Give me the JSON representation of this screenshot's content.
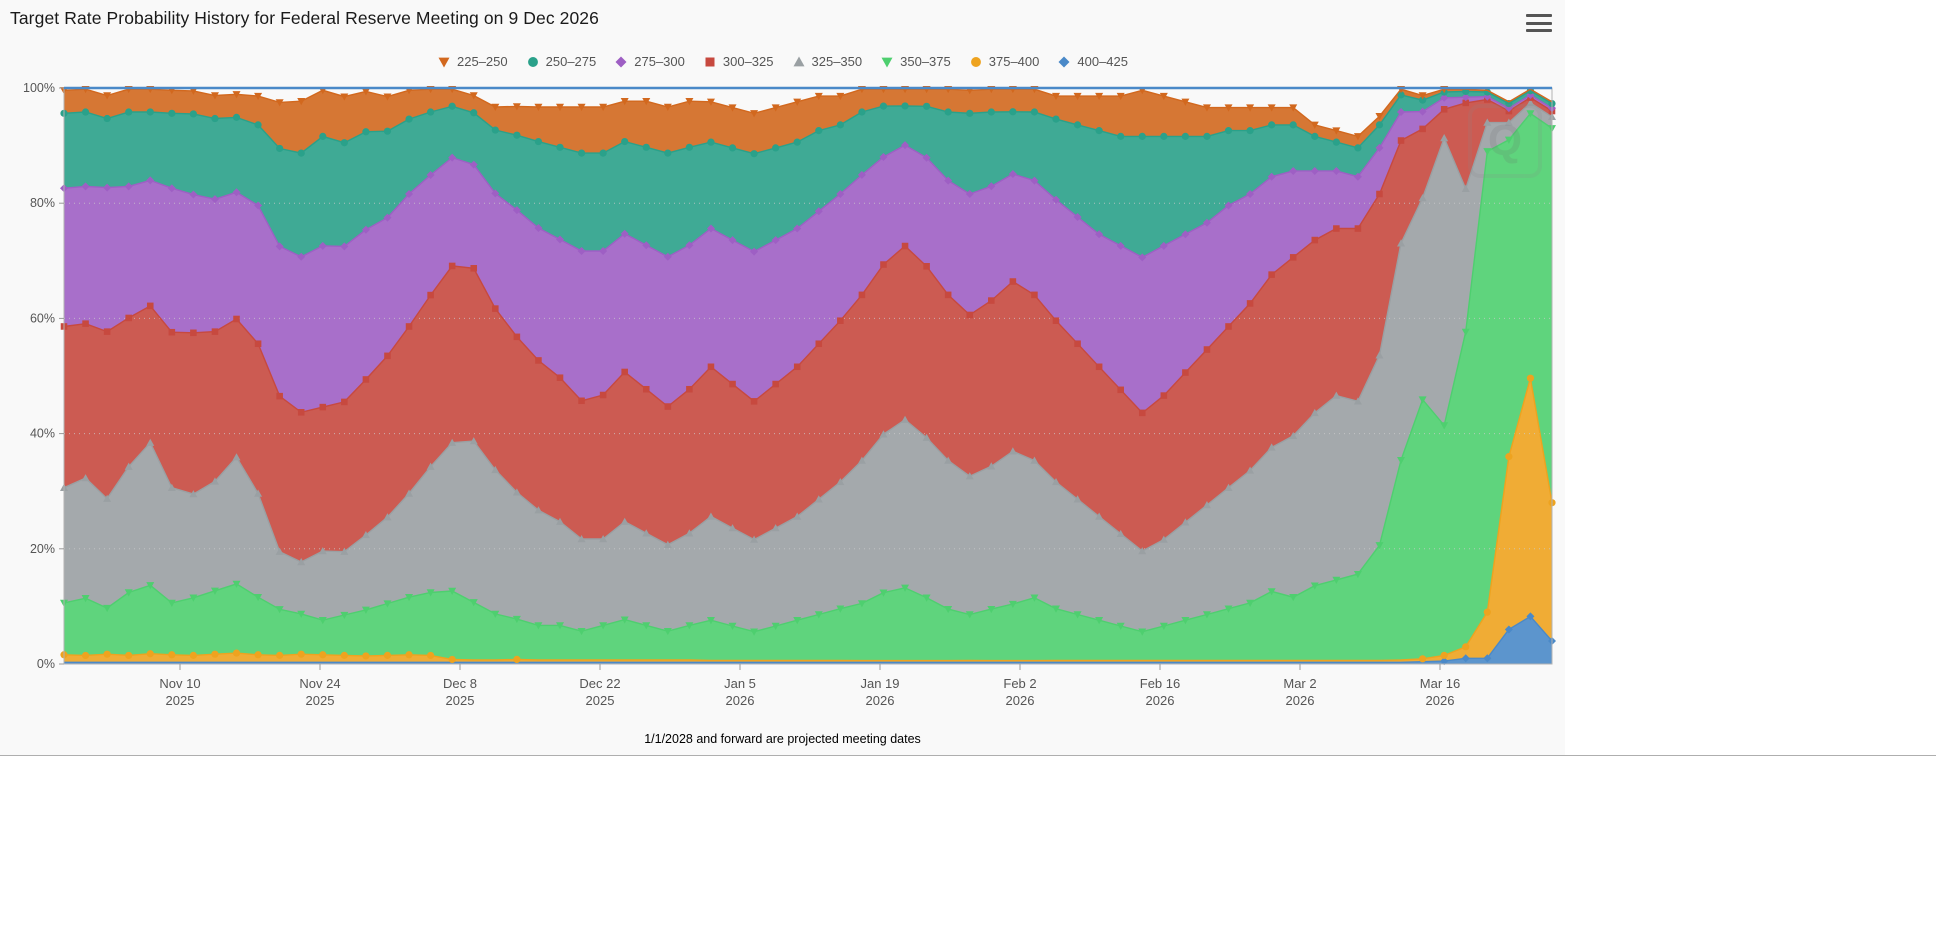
{
  "chart": {
    "title": "Target Rate Probability History for Federal Reserve Meeting on 9 Dec 2026",
    "footnote": "1/1/2028 and forward are projected meeting dates",
    "watermark_letter": "Q",
    "background": "#f9f9f9",
    "menu_icon": "hamburger-menu-icon"
  },
  "chart_data": {
    "type": "area",
    "stacked": true,
    "title": "Target Rate Probability History for Federal Reserve Meeting on 9 Dec 2026",
    "xlabel": "",
    "ylabel": "",
    "ylim": [
      0,
      100
    ],
    "grid": "horizontal-dotted",
    "legend_position": "top",
    "y_ticks": [
      "0%",
      "20%",
      "40%",
      "60%",
      "80%",
      "100%"
    ],
    "y_tick_values": [
      0,
      20,
      40,
      60,
      80,
      100
    ],
    "x_ticks": [
      {
        "label": "Nov 10",
        "year": "2025"
      },
      {
        "label": "Nov 24",
        "year": "2025"
      },
      {
        "label": "Dec 8",
        "year": "2025"
      },
      {
        "label": "Dec 22",
        "year": "2025"
      },
      {
        "label": "Jan 5",
        "year": "2026"
      },
      {
        "label": "Jan 19",
        "year": "2026"
      },
      {
        "label": "Feb 2",
        "year": "2026"
      },
      {
        "label": "Feb 16",
        "year": "2026"
      },
      {
        "label": "Mar 2",
        "year": "2026"
      },
      {
        "label": "Mar 16",
        "year": "2026"
      }
    ],
    "stack_order": [
      "400–425",
      "375–400",
      "350–375",
      "325–350",
      "300–325",
      "275–300",
      "250–275",
      "225–250"
    ],
    "series": [
      {
        "name": "225–250",
        "color": "#d2681e",
        "marker": "triangle-down",
        "values": [
          4,
          4,
          4,
          4,
          4,
          4,
          4,
          4,
          4,
          5,
          8,
          9,
          8,
          8,
          7,
          6,
          5,
          4,
          3,
          3,
          4,
          5,
          6,
          7,
          8,
          8,
          7,
          8,
          8,
          8,
          7,
          7,
          7,
          7,
          7,
          6,
          5,
          4,
          3,
          3,
          3,
          4,
          4,
          4,
          4,
          4,
          4,
          5,
          6,
          7,
          8,
          7,
          6,
          5,
          4,
          4,
          3,
          3,
          2,
          2,
          2,
          1.5,
          1,
          0.8,
          0.5,
          0.4,
          0.3,
          0.3,
          0.3,
          0.3
        ]
      },
      {
        "name": "250–275",
        "color": "#2aa18a",
        "marker": "circle",
        "values": [
          13,
          13,
          12,
          13,
          12,
          13,
          14,
          14,
          13,
          14,
          17,
          18,
          19,
          18,
          17,
          15,
          13,
          11,
          9,
          9,
          11,
          13,
          15,
          16,
          17,
          17,
          16,
          17,
          18,
          17,
          15,
          16,
          17,
          16,
          15,
          14,
          12,
          11,
          9,
          7,
          9,
          12,
          14,
          13,
          11,
          12,
          14,
          16,
          18,
          19,
          21,
          19,
          17,
          15,
          13,
          11,
          9,
          8,
          6,
          5,
          5,
          4,
          3,
          2,
          1,
          1,
          0.8,
          0.8,
          0.8,
          0.8
        ]
      },
      {
        "name": "275–300",
        "color": "#9e5fc4",
        "marker": "diamond",
        "values": [
          24,
          24,
          25,
          23,
          22,
          25,
          24,
          23,
          22,
          24,
          26,
          27,
          28,
          27,
          26,
          24,
          23,
          21,
          19,
          18,
          20,
          22,
          23,
          24,
          26,
          25,
          24,
          25,
          26,
          25,
          24,
          25,
          26,
          25,
          24,
          23,
          22,
          21,
          19,
          18,
          19,
          20,
          21,
          20,
          19,
          20,
          21,
          22,
          23,
          25,
          27,
          26,
          24,
          22,
          21,
          19,
          17,
          15,
          12,
          10,
          9,
          8,
          5,
          3,
          2,
          1,
          0.5,
          0.5,
          0.5,
          0.5
        ]
      },
      {
        "name": "300–325",
        "color": "#c7493f",
        "marker": "square",
        "values": [
          28,
          27,
          29,
          26,
          24,
          27,
          28,
          26,
          24,
          26,
          27,
          26,
          25,
          26,
          27,
          28,
          29,
          30,
          31,
          30,
          28,
          27,
          26,
          25,
          24,
          25,
          26,
          25,
          24,
          25,
          26,
          25,
          24,
          25,
          26,
          27,
          28,
          29,
          30,
          31,
          30,
          29,
          28,
          29,
          30,
          29,
          28,
          27,
          26,
          25,
          24,
          25,
          26,
          27,
          28,
          29,
          30,
          31,
          30,
          29,
          30,
          28,
          18,
          12,
          5,
          15,
          4,
          2,
          1,
          1
        ]
      },
      {
        "name": "325–350",
        "color": "#9aa0a3",
        "marker": "triangle",
        "values": [
          20,
          21,
          19,
          22,
          25,
          20,
          18,
          19,
          22,
          18,
          10,
          9,
          12,
          11,
          13,
          15,
          18,
          22,
          26,
          28,
          25,
          22,
          20,
          18,
          16,
          15,
          17,
          16,
          15,
          16,
          18,
          17,
          16,
          17,
          18,
          20,
          22,
          25,
          28,
          30,
          28,
          26,
          24,
          25,
          27,
          24,
          22,
          20,
          18,
          16,
          14,
          15,
          17,
          19,
          21,
          23,
          25,
          28,
          30,
          32,
          30,
          33,
          38,
          35,
          50,
          25,
          5,
          3,
          2,
          2
        ]
      },
      {
        "name": "350–375",
        "color": "#4ecf6f",
        "marker": "triangle-down",
        "values": [
          9,
          10,
          8,
          11,
          12,
          9,
          10,
          11,
          12,
          10,
          8,
          7,
          6,
          7,
          8,
          9,
          10,
          11,
          12,
          10,
          8,
          7,
          6,
          6,
          5,
          6,
          7,
          6,
          5,
          6,
          7,
          6,
          5,
          6,
          7,
          8,
          9,
          10,
          12,
          13,
          11,
          9,
          8,
          9,
          10,
          11,
          9,
          8,
          7,
          6,
          5,
          6,
          7,
          8,
          9,
          10,
          12,
          11,
          13,
          14,
          15,
          20,
          35,
          45,
          40,
          55,
          80,
          55,
          50,
          65
        ]
      },
      {
        "name": "375–400",
        "color": "#eea31f",
        "marker": "circle",
        "values": [
          1.3,
          1.2,
          1.4,
          1.2,
          1.5,
          1.3,
          1.2,
          1.4,
          1.6,
          1.3,
          1.2,
          1.4,
          1.3,
          1.2,
          1.1,
          1.2,
          1.3,
          1.2,
          0.5,
          0.4,
          0.4,
          0.5,
          0.4,
          0.4,
          0.4,
          0.4,
          0.4,
          0.4,
          0.4,
          0.4,
          0.3,
          0.3,
          0.3,
          0.3,
          0.3,
          0.3,
          0.3,
          0.3,
          0.3,
          0.3,
          0.3,
          0.3,
          0.3,
          0.3,
          0.3,
          0.3,
          0.3,
          0.3,
          0.3,
          0.3,
          0.3,
          0.3,
          0.3,
          0.3,
          0.3,
          0.3,
          0.3,
          0.3,
          0.3,
          0.3,
          0.3,
          0.3,
          0.4,
          0.5,
          1,
          2,
          8,
          30,
          45,
          24
        ]
      },
      {
        "name": "400–425",
        "color": "#4a89c8",
        "marker": "diamond",
        "values": [
          0.3,
          0.3,
          0.3,
          0.3,
          0.3,
          0.3,
          0.3,
          0.3,
          0.3,
          0.3,
          0.3,
          0.3,
          0.3,
          0.3,
          0.3,
          0.3,
          0.3,
          0.3,
          0.3,
          0.3,
          0.3,
          0.3,
          0.3,
          0.3,
          0.3,
          0.3,
          0.3,
          0.3,
          0.3,
          0.3,
          0.3,
          0.3,
          0.3,
          0.3,
          0.3,
          0.3,
          0.3,
          0.3,
          0.3,
          0.3,
          0.3,
          0.3,
          0.3,
          0.3,
          0.3,
          0.3,
          0.3,
          0.3,
          0.3,
          0.3,
          0.3,
          0.3,
          0.3,
          0.3,
          0.3,
          0.3,
          0.3,
          0.3,
          0.3,
          0.3,
          0.3,
          0.3,
          0.3,
          0.4,
          0.5,
          1,
          1,
          6,
          9,
          4
        ]
      }
    ]
  }
}
